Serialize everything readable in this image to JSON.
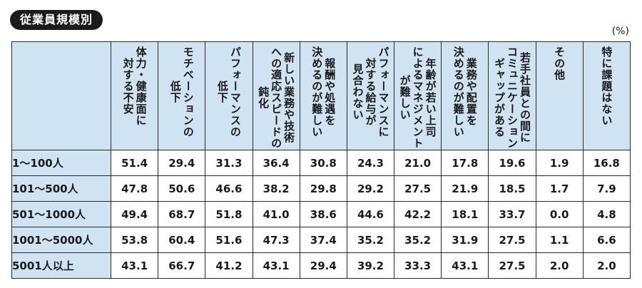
{
  "title": "従業員規模別",
  "unit": "(%)",
  "chart_data": {
    "type": "table",
    "columns": [
      "体力・健康面に\n対する不安",
      "モチベーションの\n低下",
      "パフォーマンスの\n低下",
      "新しい業務や技術\nへの適応スピードの\n鈍化",
      "報酬や処遇を\n決めるのが難しい",
      "パフォーマンスに\n対する給与が\n見合わない",
      "年齢が若い上司\nによるマネジメント\nが難しい",
      "業務や配置を\n決めるのが難しい",
      "若手社員との間に\nコミュニケーション\nギャップがある",
      "その他",
      "特に課題はない"
    ],
    "rows": [
      {
        "label": "1～100人",
        "values": [
          "51.4",
          "29.4",
          "31.3",
          "36.4",
          "30.8",
          "24.3",
          "21.0",
          "17.8",
          "19.6",
          "1.9",
          "16.8"
        ]
      },
      {
        "label": "101～500人",
        "values": [
          "47.8",
          "50.6",
          "46.6",
          "38.2",
          "29.8",
          "29.2",
          "27.5",
          "21.9",
          "18.5",
          "1.7",
          "7.9"
        ]
      },
      {
        "label": "501～1000人",
        "values": [
          "49.4",
          "68.7",
          "51.8",
          "41.0",
          "38.6",
          "44.6",
          "42.2",
          "18.1",
          "33.7",
          "0.0",
          "4.8"
        ]
      },
      {
        "label": "1001～5000人",
        "values": [
          "53.8",
          "60.4",
          "51.6",
          "47.3",
          "37.4",
          "35.2",
          "35.2",
          "31.9",
          "27.5",
          "1.1",
          "6.6"
        ]
      },
      {
        "label": "5001人以上",
        "values": [
          "43.1",
          "66.7",
          "41.2",
          "43.1",
          "29.4",
          "39.2",
          "33.3",
          "43.1",
          "27.5",
          "2.0",
          "2.0"
        ]
      }
    ]
  }
}
